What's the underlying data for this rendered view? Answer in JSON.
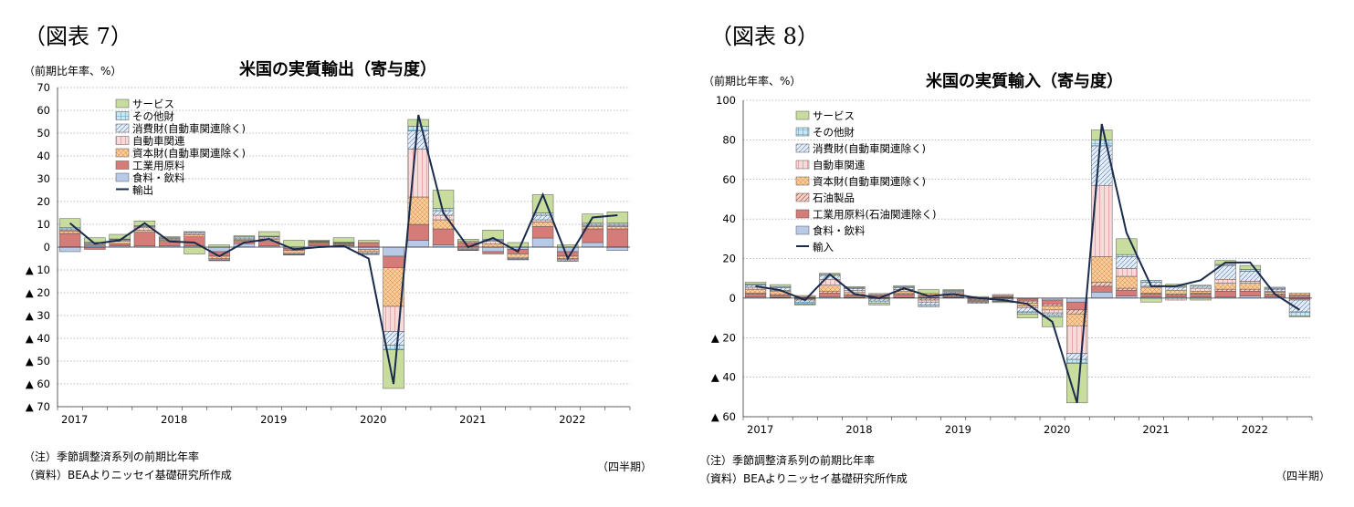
{
  "quarters": [
    "2017Q1",
    "2017Q2",
    "2017Q3",
    "2017Q4",
    "2018Q1",
    "2018Q2",
    "2018Q3",
    "2018Q4",
    "2019Q1",
    "2019Q2",
    "2019Q3",
    "2019Q4",
    "2020Q1",
    "2020Q2",
    "2020Q3",
    "2020Q4",
    "2021Q1",
    "2021Q2",
    "2021Q3",
    "2021Q4",
    "2022Q1",
    "2022Q2",
    "2022Q3"
  ],
  "colors": {
    "services": "#c8dc9e",
    "other": "#c9e6f2",
    "consumer": "#e4eef8",
    "auto": "#f8dada",
    "capital": "#f9cc9e",
    "petro": "#f3d2c6",
    "industrial": "#d57b78",
    "food": "#b9c9e8",
    "line": "#1a2b4c"
  },
  "left": {
    "figure_label": "（図表 7）",
    "unit_label": "（前期比年率、%）",
    "title": "米国の実質輸出（寄与度）",
    "note1": "（注）季節調整済系列の前期比年率",
    "note2": "（資料）BEAよりニッセイ基礎研究所作成",
    "period_label": "（四半期）",
    "chart_data": {
      "type": "bar",
      "stacked": true,
      "title": "米国の実質輸出（寄与度）",
      "ylabel": "（前期比年率、%）",
      "xlabel": "（四半期）",
      "ylim": [
        -70,
        70
      ],
      "yticks": [
        70,
        60,
        50,
        40,
        30,
        20,
        10,
        0,
        -10,
        -20,
        -30,
        -40,
        -50,
        -60,
        -70
      ],
      "ytick_labels": [
        "70",
        "60",
        "50",
        "40",
        "30",
        "20",
        "10",
        "0",
        "▲ 10",
        "▲ 20",
        "▲ 30",
        "▲ 40",
        "▲ 50",
        "▲ 60",
        "▲ 70"
      ],
      "year_labels": [
        "2017",
        "2018",
        "2019",
        "2020",
        "2021",
        "2022"
      ],
      "legend_position": "top-left",
      "grid": "dotted horizontal",
      "series": [
        {
          "name": "食料・飲料",
          "key": "food",
          "values": [
            -2,
            0.5,
            0.5,
            0.5,
            0.5,
            0.5,
            -2,
            1.5,
            0.5,
            -0.5,
            0.5,
            0.5,
            -1,
            -4,
            3,
            1,
            -0.5,
            -2,
            -1,
            4,
            -2,
            2,
            -1.5
          ]
        },
        {
          "name": "工業用原料",
          "key": "industrial",
          "values": [
            6,
            -1,
            1,
            6,
            2,
            4,
            -2,
            1,
            2,
            -1,
            1,
            0.5,
            2,
            -5,
            7,
            7,
            2,
            -1,
            -2,
            5,
            -2,
            6,
            8
          ]
        },
        {
          "name": "資本財(自動車関連除く)",
          "key": "capital",
          "values": [
            1,
            0.5,
            1,
            1,
            0.5,
            1,
            -1,
            0.5,
            1,
            -1,
            0.5,
            0.5,
            -1,
            -17,
            12,
            4,
            0.5,
            1.5,
            -1.5,
            2,
            -1,
            1,
            1
          ]
        },
        {
          "name": "自動車関連",
          "key": "auto",
          "values": [
            0.5,
            0.5,
            0.5,
            1,
            0.5,
            0.5,
            -0.5,
            0.5,
            0.5,
            -0.5,
            0.2,
            0.2,
            -0.5,
            -11,
            21,
            2,
            -0.5,
            1,
            -0.5,
            1,
            -0.5,
            0.5,
            0.5
          ]
        },
        {
          "name": "消費財(自動車関連除く)",
          "key": "consumer",
          "values": [
            0.5,
            0.3,
            0.3,
            0.5,
            0.3,
            0.5,
            -0.3,
            0.5,
            0.5,
            -0.3,
            0.2,
            0.2,
            -0.5,
            -6,
            8,
            2,
            -0.3,
            0.5,
            -0.3,
            2,
            -0.5,
            0.5,
            0.5
          ]
        },
        {
          "name": "その他財",
          "key": "other",
          "values": [
            0.5,
            0.3,
            0.3,
            0.5,
            0.3,
            0.3,
            -0.2,
            0.5,
            0.3,
            -0.2,
            0.2,
            0.2,
            -0.3,
            -2,
            2,
            1,
            -0.2,
            0.5,
            -0.3,
            1,
            -0.2,
            0.5,
            0.5
          ]
        },
        {
          "name": "サービス",
          "key": "services",
          "values": [
            4,
            2,
            2,
            2,
            0.5,
            -3,
            1,
            0.5,
            2,
            3,
            0.5,
            2,
            1,
            -17,
            3,
            8,
            1,
            4,
            2,
            8,
            1,
            4,
            5
          ]
        }
      ],
      "line": {
        "name": "輸出",
        "key": "line",
        "values": [
          10.5,
          1.5,
          3,
          10.5,
          2.5,
          2,
          -4,
          2,
          3.5,
          -1,
          0,
          0.5,
          -5,
          -60,
          58,
          15,
          0,
          4,
          -2,
          23,
          -5,
          13,
          14
        ]
      }
    }
  },
  "right": {
    "figure_label": "（図表 8）",
    "unit_label": "（前期比年率、%）",
    "title": "米国の実質輸入（寄与度）",
    "note1": "（注）季節調整済系列の前期比年率",
    "note2": "（資料）BEAよりニッセイ基礎研究所作成",
    "period_label": "（四半期）",
    "chart_data": {
      "type": "bar",
      "stacked": true,
      "title": "米国の実質輸入（寄与度）",
      "ylabel": "（前期比年率、%）",
      "xlabel": "（四半期）",
      "ylim": [
        -60,
        100
      ],
      "yticks": [
        100,
        80,
        60,
        40,
        20,
        0,
        -20,
        -40,
        -60
      ],
      "ytick_labels": [
        "100",
        "80",
        "60",
        "40",
        "20",
        "0",
        "▲ 20",
        "▲ 40",
        "▲ 60"
      ],
      "year_labels": [
        "2017",
        "2018",
        "2019",
        "2020",
        "2021",
        "2022"
      ],
      "legend_position": "top-left",
      "grid": "dotted horizontal",
      "series": [
        {
          "name": "食料・飲料",
          "key": "food",
          "values": [
            0.5,
            0.3,
            0.3,
            0.5,
            0.3,
            0.3,
            0.3,
            0.3,
            0.3,
            -0.2,
            0.3,
            -0.5,
            -1,
            -2,
            3,
            1,
            0.5,
            0.5,
            0.5,
            0.5,
            1,
            0.5,
            -0.5
          ]
        },
        {
          "name": "工業用原料(石油関連除く)",
          "key": "industrial",
          "values": [
            1.5,
            1,
            -0.5,
            2,
            1,
            1,
            1.5,
            1,
            0.5,
            -0.5,
            0.5,
            -1,
            -2,
            -4,
            3,
            3,
            1.5,
            1,
            1.5,
            3,
            2.5,
            1,
            1
          ]
        },
        {
          "name": "石油製品",
          "key": "petro",
          "values": [
            0.5,
            0.5,
            -0.5,
            1,
            0.5,
            -0.5,
            0.5,
            -1,
            0.5,
            -0.5,
            -0.5,
            -1,
            -1,
            -2,
            2,
            1,
            0.5,
            0.5,
            0.5,
            1,
            1,
            0.5,
            0.5
          ]
        },
        {
          "name": "資本財(自動車関連除く)",
          "key": "capital",
          "values": [
            2,
            1.5,
            0.5,
            3,
            1,
            0.5,
            1,
            1,
            1,
            -0.5,
            0.5,
            -1.5,
            -2,
            -6,
            13,
            6,
            3,
            2,
            1,
            3,
            3,
            1,
            1
          ]
        },
        {
          "name": "自動車関連",
          "key": "auto",
          "values": [
            1,
            0.5,
            0.5,
            3,
            1,
            0.5,
            1,
            -1,
            0.5,
            -0.5,
            0.5,
            -1,
            -1.5,
            -14,
            36,
            4,
            0.5,
            -1,
            1.5,
            2,
            1,
            0.5,
            -0.5
          ]
        },
        {
          "name": "消費財(自動車関連除く)",
          "key": "consumer",
          "values": [
            1,
            1.5,
            -1,
            2,
            1,
            -1,
            1,
            -1.5,
            0.5,
            -0.5,
            -1,
            -2,
            -1,
            -3,
            20,
            6,
            2,
            1.5,
            1,
            7,
            5,
            1,
            -6
          ]
        },
        {
          "name": "その他財",
          "key": "other",
          "values": [
            0.5,
            0.5,
            -1,
            0.5,
            0.5,
            -1,
            0.5,
            -1,
            0.5,
            0.3,
            -0.3,
            -1,
            -1,
            -2,
            3,
            1,
            1,
            0.5,
            0.5,
            0.5,
            1,
            0.5,
            -2
          ]
        },
        {
          "name": "サービス",
          "key": "services",
          "values": [
            1,
            1,
            -0.5,
            0.5,
            0.5,
            -1,
            0.5,
            2,
            0.5,
            0.5,
            -0.5,
            -2,
            -5,
            -20,
            5,
            8,
            -2,
            1,
            -1,
            2,
            2,
            0.5,
            -0.5
          ]
        }
      ],
      "line": {
        "name": "輸入",
        "key": "line",
        "values": [
          6,
          4,
          -1,
          12,
          2,
          0,
          5,
          1,
          2,
          0,
          -1,
          -3,
          -12,
          -53,
          88,
          33,
          6,
          6,
          9,
          18,
          18,
          2,
          -6
        ]
      }
    }
  }
}
